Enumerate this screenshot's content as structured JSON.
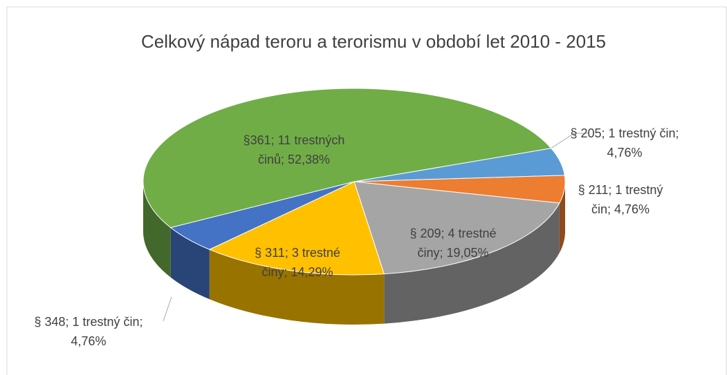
{
  "chart_data": {
    "type": "pie",
    "title": "Celkový nápad teroru a terorismu v období let 2010 - 2015",
    "categories": [
      "§ 205",
      "§ 211",
      "§ 209",
      "§ 311",
      "§ 348",
      "§361"
    ],
    "values": [
      4.76,
      4.76,
      19.05,
      14.29,
      4.76,
      52.38
    ],
    "value_labels": [
      "§ 205; 1 trestný čin; 4,76%",
      "§ 211; 1 trestný čin; 4,76%",
      "§ 209; 4 trestné činy; 19,05%",
      "§ 311; 3 trestné činy; 14,29%",
      "§ 348; 1 trestný čin; 4,76%",
      "§361; 11 trestných činů; 52,38%"
    ],
    "colors": [
      "#5b9bd5",
      "#ed7d31",
      "#a5a5a5",
      "#ffc000",
      "#4472c4",
      "#70ad47"
    ]
  }
}
